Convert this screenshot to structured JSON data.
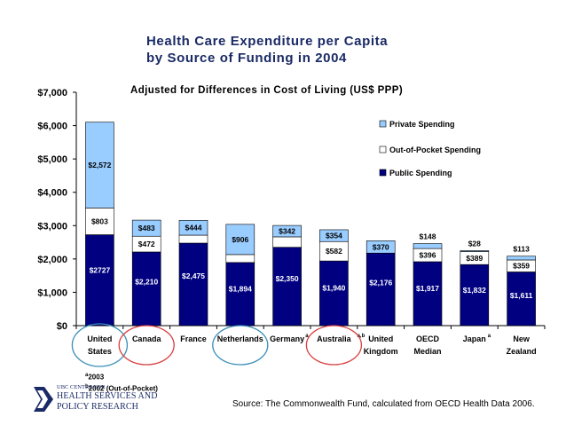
{
  "title_line1": "Health Care Expenditure per Capita",
  "title_line2": "by Source of Funding in 2004",
  "subtitle": "Adjusted for Differences in Cost of Living (US$ PPP)",
  "footnote_a": "2003",
  "footnote_b": "2002 (Out-of-Pocket)",
  "footnote_a_mark": "a",
  "footnote_b_mark": "b",
  "source": "Source: The Commonwealth Fund, calculated from OECD Health Data 2006.",
  "logo": {
    "line1": "UBC CENTRE FOR",
    "line2": "HEALTH SERVICES AND",
    "line3": "POLICY RESEARCH"
  },
  "colors": {
    "public": "#000080",
    "out_of_pocket": "#ffffff",
    "private": "#99ccff",
    "circle_blue": "#3a8fb7",
    "circle_red": "#d94040",
    "title": "#1a2a66"
  },
  "chart_data": {
    "type": "bar",
    "stacked": true,
    "categories": [
      [
        "United",
        "States"
      ],
      [
        "Canada"
      ],
      [
        "France"
      ],
      [
        "Netherlands"
      ],
      [
        "Germany"
      ],
      [
        "Australia"
      ],
      [
        "United",
        "Kingdom"
      ],
      [
        "OECD",
        "Median"
      ],
      [
        "Japan"
      ],
      [
        "New",
        "Zealand"
      ]
    ],
    "category_marks": [
      "",
      "",
      "",
      "",
      "a",
      "a,b",
      "",
      "",
      "a",
      ""
    ],
    "series": [
      {
        "name": "Public Spending",
        "values": [
          2727,
          2210,
          2475,
          1894,
          2350,
          1940,
          2176,
          1917,
          1832,
          1611
        ],
        "labels": [
          "$2727",
          "$2,210",
          "$2,475",
          "$1,894",
          "$2,350",
          "$1,940",
          "$2,176",
          "$1,917",
          "$1,832",
          "$1,611"
        ]
      },
      {
        "name": "Out-of-Pocket Spending",
        "values": [
          803,
          472,
          239,
          238,
          313,
          582,
          0,
          396,
          389,
          359
        ],
        "labels": [
          "$803",
          "$472",
          "$239",
          "$238",
          "$313",
          "$582",
          "",
          "$396",
          "$389",
          "$359"
        ]
      },
      {
        "name": "Private Spending",
        "values": [
          2572,
          483,
          444,
          906,
          342,
          354,
          370,
          148,
          28,
          113
        ],
        "labels": [
          "$2,572",
          "$483",
          "$444",
          "$906",
          "$342",
          "$354",
          "$370",
          "$148",
          "$28",
          "$113"
        ]
      }
    ],
    "ylim": [
      0,
      7000
    ],
    "yticks": [
      "$0",
      "$1,000",
      "$2,000",
      "$3,000",
      "$4,000",
      "$5,000",
      "$6,000",
      "$7,000"
    ],
    "legend": [
      "Private Spending",
      "Out-of-Pocket Spending",
      "Public Spending"
    ],
    "legend_position": "top-right",
    "grid": false,
    "highlight_circles": [
      {
        "category": "United States",
        "color": "blue"
      },
      {
        "category": "Canada",
        "color": "red"
      },
      {
        "category": "Netherlands",
        "color": "blue"
      },
      {
        "category": "Australia",
        "color": "red"
      }
    ]
  }
}
